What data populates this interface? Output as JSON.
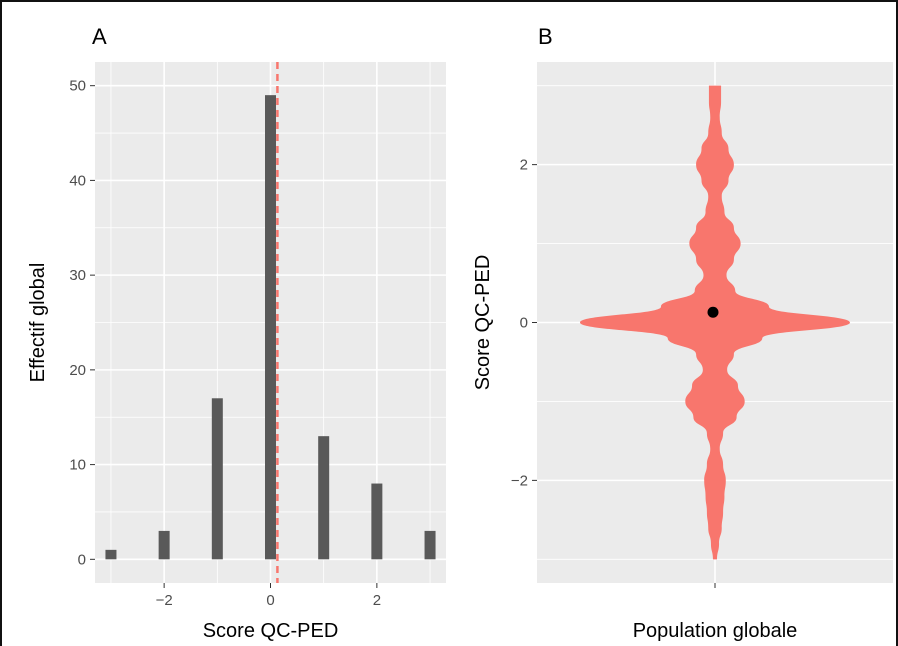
{
  "chart_data": [
    {
      "panel": "A",
      "type": "bar",
      "xlabel": "Score QC-PED",
      "ylabel": "Effectif global",
      "x": [
        -3,
        -2,
        -1,
        0,
        1,
        2,
        3
      ],
      "values": [
        1,
        3,
        17,
        49,
        13,
        8,
        3
      ],
      "x_ticks": [
        -2,
        0,
        2
      ],
      "y_ticks": [
        0,
        10,
        20,
        30,
        40,
        50
      ],
      "xlim": [
        -3.3,
        3.3
      ],
      "ylim": [
        -2.5,
        52.5
      ],
      "mean_line": 0.13,
      "bar_color": "#595959",
      "mean_line_color": "#f8766d",
      "panel_background": "#ebebeb",
      "grid": true
    },
    {
      "panel": "B",
      "type": "violin",
      "xlabel": "Population globale",
      "ylabel": "Score QC-PED",
      "category": "",
      "y_ticks": [
        -2,
        0,
        2
      ],
      "ylim": [
        -3.3,
        3.3
      ],
      "density": [
        [
          -3.0,
          0.015
        ],
        [
          -2.8,
          0.03
        ],
        [
          -2.6,
          0.05
        ],
        [
          -2.4,
          0.06
        ],
        [
          -2.2,
          0.07
        ],
        [
          -2.0,
          0.08
        ],
        [
          -1.8,
          0.06
        ],
        [
          -1.6,
          0.035
        ],
        [
          -1.4,
          0.06
        ],
        [
          -1.2,
          0.16
        ],
        [
          -1.0,
          0.22
        ],
        [
          -0.8,
          0.17
        ],
        [
          -0.6,
          0.09
        ],
        [
          -0.4,
          0.14
        ],
        [
          -0.2,
          0.35
        ],
        [
          0.0,
          1.0
        ],
        [
          0.2,
          0.4
        ],
        [
          0.4,
          0.15
        ],
        [
          0.6,
          0.085
        ],
        [
          0.8,
          0.14
        ],
        [
          1.0,
          0.19
        ],
        [
          1.2,
          0.14
        ],
        [
          1.4,
          0.07
        ],
        [
          1.6,
          0.05
        ],
        [
          1.8,
          0.1
        ],
        [
          2.0,
          0.14
        ],
        [
          2.2,
          0.1
        ],
        [
          2.4,
          0.05
        ],
        [
          2.6,
          0.035
        ],
        [
          2.8,
          0.045
        ],
        [
          3.0,
          0.045
        ]
      ],
      "mean_point": 0.13,
      "violin_color": "#f8766d",
      "point_color": "#000000",
      "panel_background": "#ebebeb",
      "grid": true
    }
  ],
  "panel_tags": {
    "a": "A",
    "b": "B"
  }
}
